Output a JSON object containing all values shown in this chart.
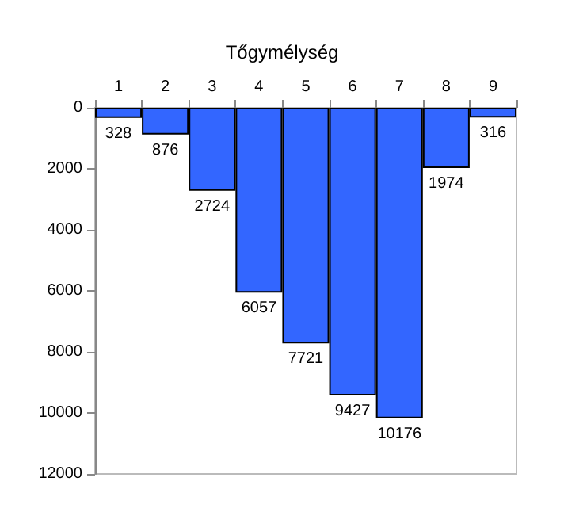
{
  "chart_data": {
    "type": "bar",
    "title": "Tőgymélység",
    "categories": [
      "1",
      "2",
      "3",
      "4",
      "5",
      "6",
      "7",
      "8",
      "9"
    ],
    "values": [
      328,
      876,
      2724,
      6057,
      7721,
      9427,
      10176,
      1974,
      316
    ],
    "color": "#3366ff",
    "ylim": [
      12000,
      0
    ],
    "yticks": [
      0,
      2000,
      4000,
      6000,
      8000,
      10000,
      12000
    ],
    "data_labels": true
  }
}
